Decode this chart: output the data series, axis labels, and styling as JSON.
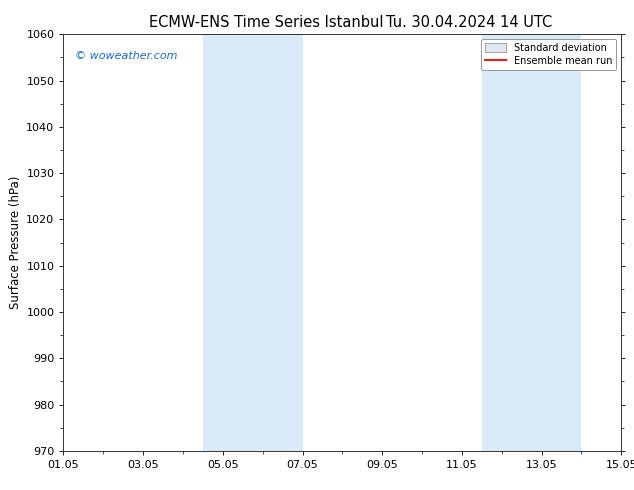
{
  "title_left": "ECMW-ENS Time Series Istanbul",
  "title_right": "Tu. 30.04.2024 14 UTC",
  "ylabel": "Surface Pressure (hPa)",
  "ylim": [
    970,
    1060
  ],
  "yticks": [
    970,
    980,
    990,
    1000,
    1010,
    1020,
    1030,
    1040,
    1050,
    1060
  ],
  "xlim": [
    0,
    14
  ],
  "xtick_labels": [
    "01.05",
    "03.05",
    "05.05",
    "07.05",
    "09.05",
    "11.05",
    "13.05",
    "15.05"
  ],
  "xtick_positions": [
    0,
    2,
    4,
    6,
    8,
    10,
    12,
    14
  ],
  "shaded_regions": [
    {
      "x_start": 3.5,
      "x_end": 6.0,
      "color": "#daeaf7"
    },
    {
      "x_start": 10.5,
      "x_end": 13.0,
      "color": "#daeaf7"
    }
  ],
  "watermark": "© woweather.com",
  "watermark_color": "#1a6bc4",
  "legend_mean_color": "#dd2222",
  "background_color": "#ffffff",
  "plot_bg_color": "#ffffff",
  "title_fontsize": 10.5,
  "tick_fontsize": 8,
  "ylabel_fontsize": 8.5
}
